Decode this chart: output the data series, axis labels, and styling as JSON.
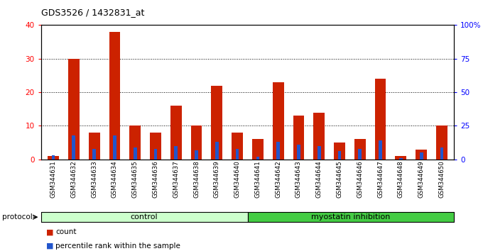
{
  "title": "GDS3526 / 1432831_at",
  "samples": [
    "GSM344631",
    "GSM344632",
    "GSM344633",
    "GSM344634",
    "GSM344635",
    "GSM344636",
    "GSM344637",
    "GSM344638",
    "GSM344639",
    "GSM344640",
    "GSM344641",
    "GSM344642",
    "GSM344643",
    "GSM344644",
    "GSM344645",
    "GSM344646",
    "GSM344647",
    "GSM344648",
    "GSM344649",
    "GSM344650"
  ],
  "count": [
    1,
    30,
    8,
    38,
    10,
    8,
    16,
    10,
    22,
    8,
    6,
    23,
    13,
    14,
    5,
    6,
    24,
    1,
    3,
    10
  ],
  "percentile": [
    3,
    18,
    8,
    18,
    9,
    8,
    10,
    7,
    13,
    8,
    2,
    13,
    11,
    10,
    6,
    8,
    14,
    1,
    5,
    9
  ],
  "control_count": 10,
  "bar_color_red": "#cc2200",
  "bar_color_blue": "#2255cc",
  "left_yticks": [
    0,
    10,
    20,
    30,
    40
  ],
  "right_yticks": [
    0,
    25,
    50,
    75,
    100
  ],
  "ctrl_color": "#ccffcc",
  "myo_color": "#44cc44"
}
